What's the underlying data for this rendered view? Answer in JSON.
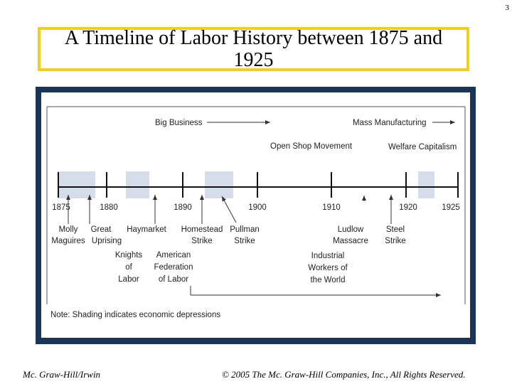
{
  "slide": {
    "number": "3",
    "title": "A Timeline of Labor History between 1875 and 1925"
  },
  "timeline": {
    "years": [
      "1875",
      "1880",
      "1890",
      "1900",
      "1910",
      "1920",
      "1925"
    ],
    "depressions": [
      {
        "start": 1875,
        "end": 1879
      },
      {
        "start": 1882,
        "end": 1885
      },
      {
        "start": 1892,
        "end": 1896
      },
      {
        "start": 1921,
        "end": 1923
      }
    ],
    "eras": {
      "big_business": "Big Business",
      "mass_manufacturing": "Mass Manufacturing",
      "open_shop": "Open Shop Movement",
      "welfare_capitalism": "Welfare Capitalism"
    },
    "events": {
      "molly_1": "Molly",
      "molly_2": "Maguires",
      "great_1": "Great",
      "great_2": "Uprising",
      "haymarket": "Haymarket",
      "knights_1": "Knights",
      "knights_2": "of",
      "knights_3": "Labor",
      "afl_1": "American",
      "afl_2": "Federation",
      "afl_3": "of Labor",
      "homestead_1": "Homestead",
      "homestead_2": "Strike",
      "pullman_1": "Pullman",
      "pullman_2": "Strike",
      "ludlow_1": "Ludlow",
      "ludlow_2": "Massacre",
      "iww_1": "Industrial",
      "iww_2": "Workers of",
      "iww_3": "the World",
      "steel_1": "Steel",
      "steel_2": "Strike"
    },
    "note": "Note: Shading indicates economic depressions",
    "shade_color": "#d4dde9"
  },
  "footer": {
    "publisher": "Mc. Graw-Hill/Irwin",
    "copyright": "© 2005 The Mc. Graw-Hill Companies, Inc., All Rights Reserved."
  }
}
